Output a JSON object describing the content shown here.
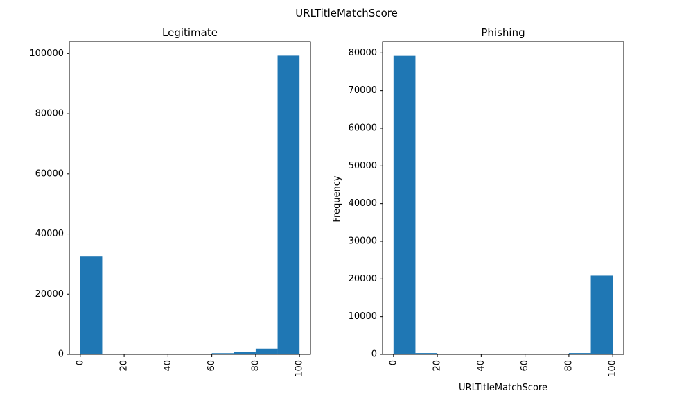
{
  "figure": {
    "suptitle": "URLTitleMatchScore"
  },
  "chart_data": [
    {
      "type": "bar",
      "title": "Legitimate",
      "xlabel": "",
      "ylabel": "",
      "bar_color": "#1f77b4",
      "xlim": [
        -5,
        105
      ],
      "ylim": [
        0,
        104000
      ],
      "x_ticks": [
        0,
        20,
        40,
        60,
        80,
        100
      ],
      "y_ticks": [
        0,
        20000,
        40000,
        60000,
        80000,
        100000
      ],
      "bins": [
        {
          "from": 0,
          "to": 10,
          "value": 32700
        },
        {
          "from": 10,
          "to": 20,
          "value": 0
        },
        {
          "from": 20,
          "to": 30,
          "value": 0
        },
        {
          "from": 30,
          "to": 40,
          "value": 0
        },
        {
          "from": 40,
          "to": 50,
          "value": 0
        },
        {
          "from": 50,
          "to": 60,
          "value": 0
        },
        {
          "from": 60,
          "to": 70,
          "value": 400
        },
        {
          "from": 70,
          "to": 80,
          "value": 700
        },
        {
          "from": 80,
          "to": 90,
          "value": 1900
        },
        {
          "from": 90,
          "to": 100,
          "value": 99300
        }
      ]
    },
    {
      "type": "bar",
      "title": "Phishing",
      "xlabel": "URLTitleMatchScore",
      "ylabel": "Frequency",
      "bar_color": "#1f77b4",
      "xlim": [
        -5,
        105
      ],
      "ylim": [
        0,
        83000
      ],
      "x_ticks": [
        0,
        20,
        40,
        60,
        80,
        100
      ],
      "y_ticks": [
        0,
        10000,
        20000,
        30000,
        40000,
        50000,
        60000,
        70000,
        80000
      ],
      "bins": [
        {
          "from": 0,
          "to": 10,
          "value": 79200
        },
        {
          "from": 10,
          "to": 20,
          "value": 350
        },
        {
          "from": 20,
          "to": 30,
          "value": 0
        },
        {
          "from": 30,
          "to": 40,
          "value": 0
        },
        {
          "from": 40,
          "to": 50,
          "value": 0
        },
        {
          "from": 50,
          "to": 60,
          "value": 0
        },
        {
          "from": 60,
          "to": 70,
          "value": 0
        },
        {
          "from": 70,
          "to": 80,
          "value": 0
        },
        {
          "from": 80,
          "to": 90,
          "value": 350
        },
        {
          "from": 90,
          "to": 100,
          "value": 20900
        }
      ]
    }
  ]
}
